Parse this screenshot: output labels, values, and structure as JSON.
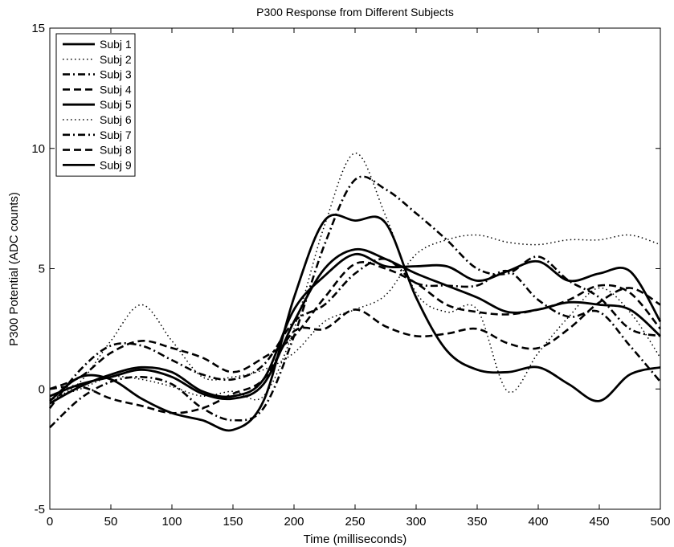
{
  "chart_data": {
    "type": "line",
    "title": "P300 Response from Different Subjects",
    "xlabel": "Time (milliseconds)",
    "ylabel": "P300 Potential (ADC counts)",
    "xlim": [
      0,
      500
    ],
    "ylim": [
      -5,
      15
    ],
    "xticks": [
      0,
      50,
      100,
      150,
      200,
      250,
      300,
      350,
      400,
      450,
      500
    ],
    "yticks": [
      -5,
      0,
      5,
      10,
      15
    ],
    "grid": false,
    "legend_position": "top-left",
    "line_color": "#000000",
    "series": [
      {
        "name": "Subj 1",
        "style": "solid",
        "x": [
          0,
          25,
          50,
          75,
          100,
          125,
          150,
          175,
          200,
          225,
          250,
          275,
          300,
          325,
          350,
          375,
          400,
          425,
          450,
          475,
          500
        ],
        "y": [
          -0.3,
          0.2,
          0.5,
          0.8,
          0.5,
          -0.2,
          -0.4,
          0.2,
          2.8,
          5.0,
          5.8,
          5.4,
          4.8,
          4.3,
          3.8,
          3.2,
          3.3,
          3.6,
          3.5,
          3.3,
          2.2
        ]
      },
      {
        "name": "Subj 2",
        "style": "dotted",
        "x": [
          0,
          25,
          50,
          75,
          100,
          125,
          150,
          175,
          200,
          225,
          250,
          275,
          300,
          325,
          350,
          375,
          400,
          425,
          450,
          475,
          500
        ],
        "y": [
          -0.5,
          0.3,
          2.0,
          3.5,
          2.0,
          0.5,
          0.5,
          0.8,
          1.5,
          2.8,
          3.3,
          3.9,
          5.6,
          6.2,
          6.4,
          6.1,
          6.0,
          6.2,
          6.2,
          6.4,
          6.0
        ]
      },
      {
        "name": "Subj 3",
        "style": "dashdot",
        "x": [
          0,
          25,
          50,
          75,
          100,
          125,
          150,
          175,
          200,
          225,
          250,
          275,
          300,
          325,
          350,
          375,
          400,
          425,
          450,
          475,
          500
        ],
        "y": [
          -1.6,
          -0.4,
          0.3,
          0.5,
          0.2,
          -0.8,
          -1.3,
          -0.8,
          2.2,
          6.0,
          8.7,
          8.3,
          7.3,
          6.2,
          5.0,
          4.8,
          5.5,
          4.5,
          3.8,
          2.5,
          2.2
        ]
      },
      {
        "name": "Subj 4",
        "style": "dashed",
        "x": [
          0,
          25,
          50,
          75,
          100,
          125,
          150,
          175,
          200,
          225,
          250,
          275,
          300,
          325,
          350,
          375,
          400,
          425,
          450,
          475,
          500
        ],
        "y": [
          0.0,
          0.1,
          -0.4,
          -0.7,
          -1.0,
          -0.8,
          -0.2,
          0.4,
          2.4,
          2.5,
          3.3,
          2.6,
          2.2,
          2.3,
          2.5,
          1.9,
          1.7,
          2.5,
          3.6,
          4.2,
          3.5
        ]
      },
      {
        "name": "Subj 5",
        "style": "solid",
        "x": [
          0,
          25,
          50,
          75,
          100,
          125,
          150,
          175,
          200,
          225,
          250,
          275,
          300,
          325,
          350,
          375,
          400,
          425,
          450,
          475,
          500
        ],
        "y": [
          -0.5,
          0.5,
          0.4,
          -0.4,
          -1.0,
          -1.3,
          -1.7,
          -0.5,
          3.8,
          7.0,
          7.0,
          6.9,
          3.8,
          1.6,
          0.8,
          0.7,
          0.9,
          0.2,
          -0.5,
          0.6,
          0.9
        ]
      },
      {
        "name": "Subj 6",
        "style": "dotted",
        "x": [
          0,
          25,
          50,
          75,
          100,
          125,
          150,
          175,
          200,
          225,
          250,
          275,
          300,
          325,
          350,
          375,
          400,
          425,
          450,
          475,
          500
        ],
        "y": [
          -0.4,
          0.0,
          0.5,
          0.4,
          0.1,
          -0.3,
          -0.1,
          -0.3,
          2.5,
          6.8,
          9.8,
          7.2,
          4.0,
          3.2,
          3.3,
          -0.1,
          1.5,
          3.0,
          4.2,
          3.2,
          1.3
        ]
      },
      {
        "name": "Subj 7",
        "style": "dashdot",
        "x": [
          0,
          25,
          50,
          75,
          100,
          125,
          150,
          175,
          200,
          225,
          250,
          275,
          300,
          325,
          350,
          375,
          400,
          425,
          450,
          475,
          500
        ],
        "y": [
          -0.8,
          0.8,
          1.8,
          1.8,
          1.2,
          0.6,
          0.4,
          1.0,
          2.8,
          3.5,
          4.8,
          5.4,
          4.4,
          4.3,
          4.3,
          4.9,
          3.7,
          3.0,
          3.2,
          1.8,
          0.3
        ]
      },
      {
        "name": "Subj 8",
        "style": "dashed",
        "x": [
          0,
          25,
          50,
          75,
          100,
          125,
          150,
          175,
          200,
          225,
          250,
          275,
          300,
          325,
          350,
          375,
          400,
          425,
          450,
          475,
          500
        ],
        "y": [
          0.0,
          0.5,
          1.5,
          2.0,
          1.7,
          1.3,
          0.7,
          1.3,
          2.2,
          3.8,
          5.2,
          5.0,
          4.4,
          3.5,
          3.2,
          3.1,
          3.3,
          3.7,
          4.3,
          4.0,
          2.5
        ]
      },
      {
        "name": "Subj 9",
        "style": "solid",
        "x": [
          0,
          25,
          50,
          75,
          100,
          125,
          150,
          175,
          200,
          225,
          250,
          275,
          300,
          325,
          350,
          375,
          400,
          425,
          450,
          475,
          500
        ],
        "y": [
          -0.6,
          0.1,
          0.6,
          0.9,
          0.7,
          -0.1,
          -0.3,
          0.4,
          3.3,
          4.7,
          5.6,
          5.1,
          5.1,
          5.1,
          4.5,
          4.9,
          5.3,
          4.5,
          4.8,
          4.9,
          2.8
        ]
      }
    ]
  }
}
